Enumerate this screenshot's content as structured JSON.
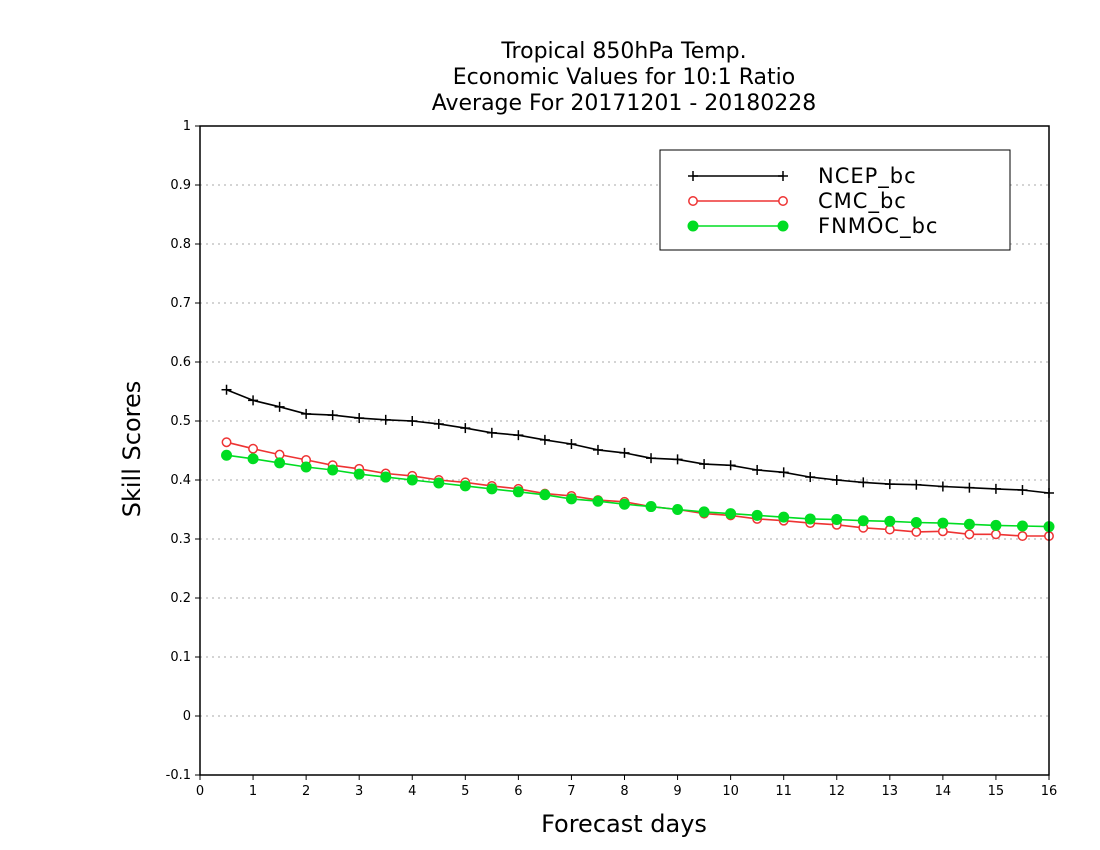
{
  "chart_data": {
    "type": "line",
    "title": [
      "Tropical 850hPa Temp.",
      "Economic Values for 10:1 Ratio",
      "Average For 20171201 - 20180228"
    ],
    "xlabel": "Forecast days",
    "ylabel": "Skill Scores",
    "xlim": [
      0,
      16
    ],
    "ylim": [
      -0.1,
      1
    ],
    "xticks": [
      0,
      1,
      2,
      3,
      4,
      5,
      6,
      7,
      8,
      9,
      10,
      11,
      12,
      13,
      14,
      15,
      16
    ],
    "yticks": [
      -0.1,
      0,
      0.1,
      0.2,
      0.3,
      0.4,
      0.5,
      0.6,
      0.7,
      0.8,
      0.9,
      1
    ],
    "ytick_labels": [
      "-0.1",
      "0",
      "0.1",
      "0.2",
      "0.3",
      "0.4",
      "0.5",
      "0.6",
      "0.7",
      "0.8",
      "0.9",
      "1"
    ],
    "grid": "horizontal dotted",
    "legend_position": "top-right",
    "x": [
      0.5,
      1.0,
      1.5,
      2.0,
      2.5,
      3.0,
      3.5,
      4.0,
      4.5,
      5.0,
      5.5,
      6.0,
      6.5,
      7.0,
      7.5,
      8.0,
      8.5,
      9.0,
      9.5,
      10.0,
      10.5,
      11.0,
      11.5,
      12.0,
      12.5,
      13.0,
      13.5,
      14.0,
      14.5,
      15.0,
      15.5,
      16.0
    ],
    "series": [
      {
        "name": "NCEP_bc",
        "color": "#000000",
        "marker": "plus",
        "values": [
          0.553,
          0.535,
          0.524,
          0.512,
          0.51,
          0.505,
          0.502,
          0.5,
          0.495,
          0.488,
          0.48,
          0.476,
          0.468,
          0.461,
          0.451,
          0.446,
          0.437,
          0.435,
          0.427,
          0.425,
          0.417,
          0.413,
          0.405,
          0.4,
          0.396,
          0.393,
          0.392,
          0.389,
          0.387,
          0.385,
          0.383,
          0.378
        ]
      },
      {
        "name": "CMC_bc",
        "color": "#ee3333",
        "marker": "open-circle",
        "values": [
          0.464,
          0.453,
          0.443,
          0.434,
          0.425,
          0.419,
          0.411,
          0.407,
          0.4,
          0.396,
          0.39,
          0.385,
          0.377,
          0.373,
          0.366,
          0.363,
          0.355,
          0.35,
          0.343,
          0.34,
          0.334,
          0.331,
          0.327,
          0.324,
          0.319,
          0.316,
          0.312,
          0.313,
          0.308,
          0.308,
          0.305,
          0.305
        ]
      },
      {
        "name": "FNMOC_bc",
        "color": "#00dd22",
        "marker": "filled-circle",
        "values": [
          0.442,
          0.436,
          0.429,
          0.422,
          0.417,
          0.41,
          0.405,
          0.4,
          0.395,
          0.39,
          0.385,
          0.38,
          0.375,
          0.368,
          0.364,
          0.359,
          0.355,
          0.35,
          0.346,
          0.343,
          0.34,
          0.337,
          0.334,
          0.333,
          0.331,
          0.33,
          0.328,
          0.327,
          0.325,
          0.323,
          0.322,
          0.321
        ]
      }
    ]
  }
}
